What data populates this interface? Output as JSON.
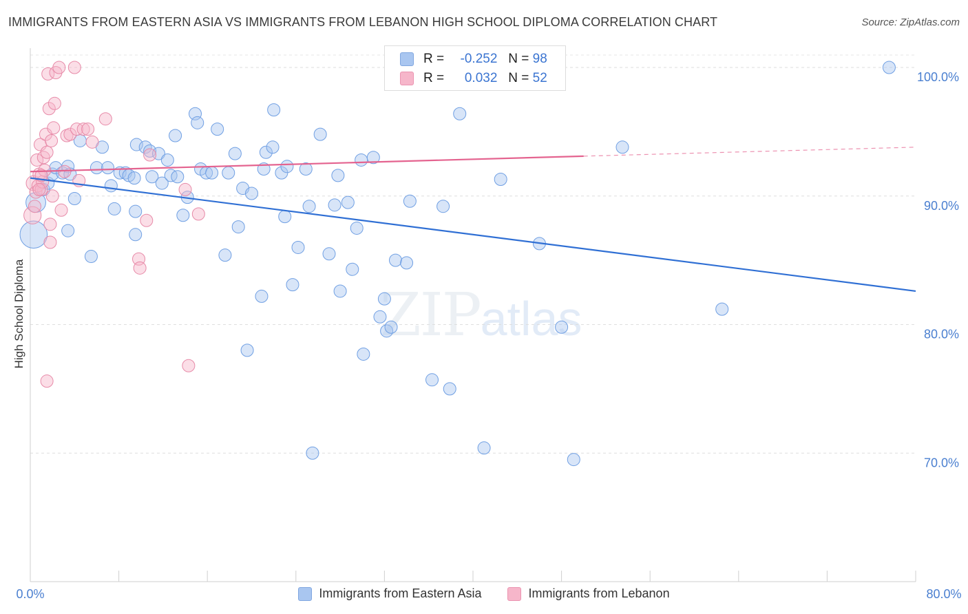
{
  "header": {
    "title": "IMMIGRANTS FROM EASTERN ASIA VS IMMIGRANTS FROM LEBANON HIGH SCHOOL DIPLOMA CORRELATION CHART",
    "source": "Source: ZipAtlas.com"
  },
  "watermark": {
    "main": "ZIP",
    "sub": "atlas"
  },
  "stats_legend": {
    "rows": [
      {
        "r_label": "R =",
        "r_value": "-0.252",
        "n_label": "N =",
        "n_value": "98",
        "color": "#a9c6f0"
      },
      {
        "r_label": "R =",
        "r_value": "0.032",
        "n_label": "N =",
        "n_value": "52",
        "color": "#f6b6ca"
      }
    ]
  },
  "chart_data": {
    "type": "scatter",
    "title": "IMMIGRANTS FROM EASTERN ASIA VS IMMIGRANTS FROM LEBANON HIGH SCHOOL DIPLOMA CORRELATION CHART",
    "xlabel": "",
    "ylabel": "High School Diploma",
    "xlim": [
      0,
      80
    ],
    "ylim": [
      60,
      101.5
    ],
    "x_tick_labels": [
      "0.0%",
      "80.0%"
    ],
    "y_ticks": [
      100,
      90,
      80,
      70
    ],
    "y_tick_labels": [
      "100.0%",
      "90.0%",
      "80.0%",
      "70.0%"
    ],
    "grid": true,
    "legend_position": "bottom",
    "series": [
      {
        "name": "Immigrants from Eastern Asia",
        "color": "#6f9fe3",
        "fill": "#a9c6f0",
        "trend": {
          "x": [
            0,
            80
          ],
          "y": [
            91.4,
            82.6
          ],
          "color": "#2f6fd4"
        },
        "points": [
          [
            0.3,
            87.0,
            22
          ],
          [
            0.5,
            89.5,
            16
          ],
          [
            1.2,
            90.5,
            10
          ],
          [
            1.6,
            91.0,
            10
          ],
          [
            2.0,
            91.7,
            10
          ],
          [
            2.3,
            92.2,
            10
          ],
          [
            2.9,
            91.8,
            10
          ],
          [
            3.4,
            92.3,
            10
          ],
          [
            3.6,
            91.7,
            10
          ],
          [
            4.0,
            89.8,
            10
          ],
          [
            3.4,
            87.3,
            10
          ],
          [
            5.5,
            85.3,
            10
          ],
          [
            4.5,
            94.3,
            10
          ],
          [
            6.5,
            93.8,
            10
          ],
          [
            6.0,
            92.2,
            10
          ],
          [
            7.0,
            92.2,
            10
          ],
          [
            7.3,
            90.8,
            10
          ],
          [
            7.6,
            89.0,
            10
          ],
          [
            8.1,
            91.8,
            10
          ],
          [
            8.6,
            91.8,
            10
          ],
          [
            8.9,
            91.6,
            10
          ],
          [
            9.4,
            91.4,
            10
          ],
          [
            9.5,
            88.8,
            10
          ],
          [
            9.5,
            87.0,
            10
          ],
          [
            9.6,
            94.0,
            10
          ],
          [
            10.4,
            93.8,
            10
          ],
          [
            10.8,
            93.5,
            10
          ],
          [
            11.0,
            91.5,
            10
          ],
          [
            11.6,
            93.3,
            10
          ],
          [
            11.9,
            91.0,
            10
          ],
          [
            12.4,
            92.8,
            10
          ],
          [
            12.7,
            91.6,
            10
          ],
          [
            13.3,
            91.5,
            10
          ],
          [
            13.1,
            94.7,
            10
          ],
          [
            13.8,
            88.5,
            10
          ],
          [
            14.2,
            89.9,
            10
          ],
          [
            14.9,
            96.4,
            10
          ],
          [
            15.1,
            95.7,
            10
          ],
          [
            15.4,
            92.1,
            10
          ],
          [
            15.9,
            91.8,
            10
          ],
          [
            16.4,
            91.8,
            10
          ],
          [
            16.9,
            95.2,
            10
          ],
          [
            17.6,
            85.4,
            10
          ],
          [
            17.9,
            91.8,
            10
          ],
          [
            18.5,
            93.3,
            10
          ],
          [
            18.8,
            87.6,
            10
          ],
          [
            19.2,
            90.6,
            10
          ],
          [
            19.6,
            78.0,
            10
          ],
          [
            20.0,
            90.2,
            10
          ],
          [
            20.9,
            82.2,
            10
          ],
          [
            21.1,
            92.1,
            10
          ],
          [
            21.3,
            93.4,
            10
          ],
          [
            21.9,
            93.8,
            10
          ],
          [
            22.0,
            96.7,
            10
          ],
          [
            22.7,
            91.8,
            10
          ],
          [
            23.0,
            88.4,
            10
          ],
          [
            23.2,
            92.3,
            10
          ],
          [
            23.7,
            83.1,
            10
          ],
          [
            24.2,
            86.0,
            10
          ],
          [
            24.9,
            92.1,
            10
          ],
          [
            25.2,
            89.2,
            10
          ],
          [
            25.5,
            70.0,
            10
          ],
          [
            26.2,
            94.8,
            10
          ],
          [
            27.0,
            85.5,
            10
          ],
          [
            27.5,
            89.3,
            10
          ],
          [
            27.8,
            91.6,
            10
          ],
          [
            28.0,
            82.6,
            10
          ],
          [
            28.7,
            89.5,
            10
          ],
          [
            29.1,
            84.3,
            10
          ],
          [
            29.5,
            87.5,
            10
          ],
          [
            29.9,
            92.8,
            10
          ],
          [
            30.1,
            77.7,
            10
          ],
          [
            31.0,
            93.0,
            10
          ],
          [
            31.6,
            80.6,
            10
          ],
          [
            32.0,
            82.0,
            10
          ],
          [
            32.2,
            79.5,
            10
          ],
          [
            32.6,
            79.8,
            10
          ],
          [
            33.0,
            85.0,
            10
          ],
          [
            34.0,
            84.8,
            10
          ],
          [
            34.3,
            89.6,
            10
          ],
          [
            36.3,
            75.7,
            10
          ],
          [
            37.3,
            89.2,
            10
          ],
          [
            37.9,
            75.0,
            10
          ],
          [
            38.8,
            96.4,
            10
          ],
          [
            38.0,
            100.2,
            10
          ],
          [
            41.0,
            70.4,
            10
          ],
          [
            42.5,
            91.3,
            10
          ],
          [
            43.7,
            100.0,
            10
          ],
          [
            46.0,
            86.3,
            10
          ],
          [
            48.0,
            79.8,
            10
          ],
          [
            49.1,
            69.5,
            10
          ],
          [
            53.5,
            93.8,
            10
          ],
          [
            62.5,
            81.2,
            10
          ],
          [
            77.6,
            100.0,
            10
          ]
        ]
      },
      {
        "name": "Immigrants from Lebanon",
        "color": "#e78aa8",
        "fill": "#f6b6ca",
        "trend": {
          "x": [
            0,
            50
          ],
          "y": [
            91.9,
            93.1
          ],
          "dashed_to": [
            80,
            93.8
          ],
          "color": "#e4638f"
        },
        "points": [
          [
            0.2,
            88.5,
            14
          ],
          [
            0.3,
            91.0,
            12
          ],
          [
            0.4,
            89.2,
            10
          ],
          [
            0.5,
            90.3,
            10
          ],
          [
            0.6,
            92.8,
            10
          ],
          [
            0.7,
            90.8,
            10
          ],
          [
            0.8,
            91.7,
            10
          ],
          [
            0.9,
            94.0,
            10
          ],
          [
            1.0,
            90.5,
            10
          ],
          [
            1.1,
            91.1,
            10
          ],
          [
            1.2,
            93.0,
            10
          ],
          [
            1.3,
            92.0,
            10
          ],
          [
            1.4,
            94.8,
            10
          ],
          [
            1.5,
            93.4,
            10
          ],
          [
            1.6,
            99.5,
            10
          ],
          [
            1.7,
            96.8,
            10
          ],
          [
            1.8,
            86.4,
            10
          ],
          [
            1.8,
            87.8,
            10
          ],
          [
            1.9,
            94.3,
            10
          ],
          [
            2.0,
            90.0,
            10
          ],
          [
            2.1,
            95.3,
            10
          ],
          [
            2.2,
            97.2,
            10
          ],
          [
            2.3,
            99.6,
            10
          ],
          [
            2.6,
            100.0,
            10
          ],
          [
            2.8,
            88.9,
            10
          ],
          [
            3.1,
            91.9,
            10
          ],
          [
            3.3,
            94.7,
            10
          ],
          [
            3.6,
            94.8,
            10
          ],
          [
            4.0,
            100.0,
            10
          ],
          [
            4.2,
            95.2,
            10
          ],
          [
            4.4,
            91.2,
            10
          ],
          [
            4.8,
            95.2,
            10
          ],
          [
            5.2,
            95.2,
            10
          ],
          [
            5.6,
            94.2,
            10
          ],
          [
            6.8,
            96.0,
            10
          ],
          [
            9.8,
            85.1,
            10
          ],
          [
            9.9,
            84.4,
            10
          ],
          [
            10.5,
            88.1,
            10
          ],
          [
            10.8,
            93.2,
            10
          ],
          [
            14.0,
            90.5,
            10
          ],
          [
            14.3,
            76.8,
            10
          ],
          [
            15.2,
            88.6,
            10
          ],
          [
            1.5,
            75.6,
            10
          ],
          [
            0.8,
            90.5,
            10
          ],
          [
            1.0,
            91.6,
            10
          ]
        ]
      }
    ]
  },
  "bottom_legend": {
    "items": [
      {
        "label": "Immigrants from Eastern Asia",
        "color": "#a9c6f0"
      },
      {
        "label": "Immigrants from Lebanon",
        "color": "#f6b6ca"
      }
    ]
  }
}
